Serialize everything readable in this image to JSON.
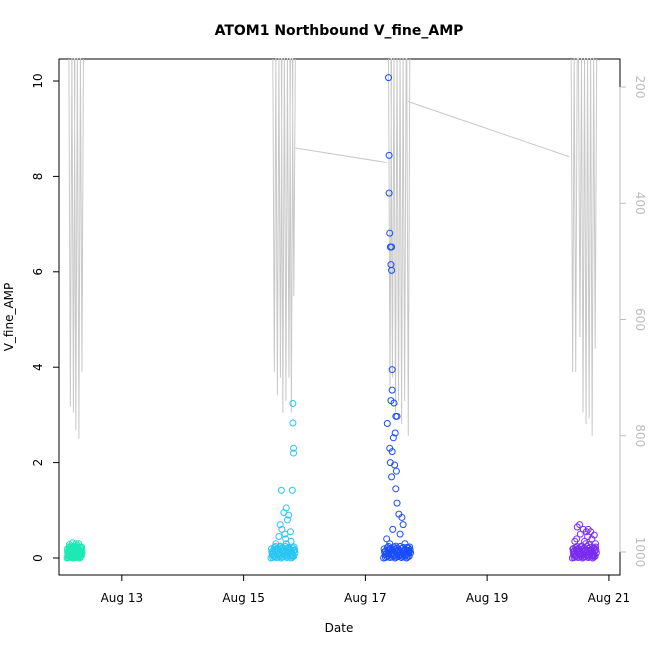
{
  "chart_data": {
    "type": "scatter",
    "title": "ATOM1 Northbound V_fine_AMP",
    "xlabel": "Date",
    "ylabel": "V_fine_AMP",
    "x_ticks": [
      "Aug 13",
      "Aug 15",
      "Aug 17",
      "Aug 19",
      "Aug 21"
    ],
    "x_tick_days": [
      13,
      15,
      17,
      19,
      21
    ],
    "xlim": [
      12.05,
      21.1
    ],
    "ylim": [
      0,
      10.3
    ],
    "y_ticks": [
      0,
      2,
      4,
      6,
      8,
      10
    ],
    "y2_ticks": [
      200,
      400,
      600,
      800,
      1000
    ],
    "y2lim": [
      1010,
      125
    ],
    "grid": false,
    "legend": "none",
    "series": [
      {
        "color": "#1de9b6",
        "cluster": {
          "day_range": [
            12.1,
            12.35
          ],
          "points": [
            [
              12.12,
              0.05
            ],
            [
              12.15,
              0.1
            ],
            [
              12.18,
              0.15
            ],
            [
              12.2,
              0.2
            ],
            [
              12.22,
              0.25
            ],
            [
              12.25,
              0.3
            ],
            [
              12.28,
              0.05
            ],
            [
              12.3,
              0.12
            ],
            [
              12.32,
              0.22
            ],
            [
              12.14,
              0.28
            ],
            [
              12.17,
              0.03
            ],
            [
              12.21,
              0.08
            ],
            [
              12.24,
              0.18
            ],
            [
              12.27,
              0.26
            ],
            [
              12.33,
              0.1
            ],
            [
              12.19,
              0.32
            ],
            [
              12.26,
              0.02
            ],
            [
              12.13,
              0.2
            ],
            [
              12.29,
              0.3
            ],
            [
              12.31,
              0.06
            ]
          ]
        }
      },
      {
        "color": "#29c6f3",
        "cluster": {
          "day_range": [
            15.45,
            15.85
          ],
          "points": [
            [
              15.5,
              0.05
            ],
            [
              15.55,
              0.15
            ],
            [
              15.6,
              0.25
            ],
            [
              15.65,
              0.1
            ],
            [
              15.7,
              0.3
            ],
            [
              15.75,
              0.2
            ],
            [
              15.8,
              0.05
            ],
            [
              15.58,
              0.45
            ],
            [
              15.63,
              0.6
            ],
            [
              15.68,
              0.5
            ],
            [
              15.72,
              0.8
            ],
            [
              15.77,
              0.55
            ],
            [
              15.66,
              0.95
            ],
            [
              15.7,
              1.05
            ],
            [
              15.62,
              1.42
            ],
            [
              15.8,
              1.42
            ],
            [
              15.74,
              0.9
            ],
            [
              15.82,
              2.2
            ],
            [
              15.82,
              2.3
            ],
            [
              15.81,
              2.83
            ],
            [
              15.81,
              3.24
            ],
            [
              15.48,
              0.1
            ],
            [
              15.53,
              0.3
            ],
            [
              15.57,
              0.08
            ],
            [
              15.61,
              0.2
            ],
            [
              15.73,
              0.12
            ],
            [
              15.78,
              0.35
            ],
            [
              15.83,
              0.15
            ],
            [
              15.6,
              0.7
            ],
            [
              15.69,
              0.4
            ]
          ]
        }
      },
      {
        "color": "#1a4cff",
        "cluster": {
          "day_range": [
            17.3,
            17.75
          ],
          "points": [
            [
              17.38,
              10.07
            ],
            [
              17.39,
              8.44
            ],
            [
              17.39,
              7.65
            ],
            [
              17.4,
              6.81
            ],
            [
              17.41,
              6.52
            ],
            [
              17.43,
              6.52
            ],
            [
              17.42,
              6.15
            ],
            [
              17.43,
              6.03
            ],
            [
              17.44,
              3.95
            ],
            [
              17.44,
              3.52
            ],
            [
              17.42,
              3.3
            ],
            [
              17.47,
              3.25
            ],
            [
              17.5,
              2.97
            ],
            [
              17.52,
              2.97
            ],
            [
              17.36,
              2.82
            ],
            [
              17.49,
              2.62
            ],
            [
              17.46,
              2.52
            ],
            [
              17.4,
              2.3
            ],
            [
              17.44,
              2.23
            ],
            [
              17.41,
              2.0
            ],
            [
              17.48,
              1.95
            ],
            [
              17.51,
              1.82
            ],
            [
              17.43,
              1.7
            ],
            [
              17.5,
              1.45
            ],
            [
              17.52,
              1.15
            ],
            [
              17.55,
              0.92
            ],
            [
              17.6,
              0.85
            ],
            [
              17.62,
              0.7
            ],
            [
              17.45,
              0.6
            ],
            [
              17.57,
              0.5
            ],
            [
              17.35,
              0.4
            ],
            [
              17.4,
              0.3
            ],
            [
              17.5,
              0.25
            ],
            [
              17.6,
              0.2
            ],
            [
              17.7,
              0.15
            ],
            [
              17.65,
              0.3
            ],
            [
              17.38,
              0.1
            ],
            [
              17.55,
              0.05
            ],
            [
              17.68,
              0.22
            ],
            [
              17.72,
              0.12
            ]
          ]
        }
      },
      {
        "color": "#7a2cf0",
        "cluster": {
          "day_range": [
            20.4,
            20.8
          ],
          "points": [
            [
              20.45,
              0.05
            ],
            [
              20.5,
              0.15
            ],
            [
              20.55,
              0.25
            ],
            [
              20.6,
              0.35
            ],
            [
              20.65,
              0.45
            ],
            [
              20.7,
              0.55
            ],
            [
              20.75,
              0.2
            ],
            [
              20.48,
              0.65
            ],
            [
              20.52,
              0.7
            ],
            [
              20.58,
              0.6
            ],
            [
              20.62,
              0.3
            ],
            [
              20.68,
              0.1
            ],
            [
              20.72,
              0.4
            ],
            [
              20.78,
              0.3
            ],
            [
              20.42,
              0.2
            ],
            [
              20.47,
              0.4
            ],
            [
              20.53,
              0.5
            ],
            [
              20.57,
              0.08
            ],
            [
              20.63,
              0.55
            ],
            [
              20.67,
              0.28
            ],
            [
              20.71,
              0.18
            ],
            [
              20.76,
              0.48
            ],
            [
              20.44,
              0.35
            ],
            [
              20.66,
              0.6
            ],
            [
              20.74,
              0.05
            ]
          ]
        }
      }
    ],
    "depth_line": {
      "color": "#c8c8c8",
      "axis": "right",
      "segments": [
        {
          "day_range": [
            12.1,
            12.35
          ],
          "spikes": [
            [
              12.13,
              125,
              750
            ],
            [
              12.18,
              125,
              760
            ],
            [
              12.22,
              125,
              790
            ],
            [
              12.27,
              125,
              805
            ],
            [
              12.32,
              125,
              690
            ]
          ]
        },
        {
          "day_range": [
            15.45,
            15.85
          ],
          "spikes": [
            [
              15.48,
              125,
              690
            ],
            [
              15.53,
              125,
              730
            ],
            [
              15.58,
              125,
              700
            ],
            [
              15.62,
              125,
              760
            ],
            [
              15.67,
              125,
              740
            ],
            [
              15.72,
              125,
              700
            ],
            [
              15.76,
              125,
              760
            ],
            [
              15.8,
              125,
              560
            ]
          ]
        },
        {
          "trend": [
            [
              15.85,
              305
            ],
            [
              17.35,
              330
            ]
          ]
        },
        {
          "day_range": [
            17.35,
            17.7
          ],
          "spikes": [
            [
              17.38,
              125,
              720
            ],
            [
              17.42,
              125,
              700
            ],
            [
              17.47,
              125,
              760
            ],
            [
              17.52,
              125,
              740
            ],
            [
              17.57,
              125,
              780
            ],
            [
              17.62,
              125,
              740
            ],
            [
              17.68,
              125,
              800
            ]
          ]
        },
        {
          "trend": [
            [
              17.7,
              225
            ],
            [
              20.35,
              320
            ]
          ]
        },
        {
          "day_range": [
            20.35,
            20.8
          ],
          "spikes": [
            [
              20.38,
              125,
              690
            ],
            [
              20.43,
              125,
              690
            ],
            [
              20.5,
              125,
              630
            ],
            [
              20.55,
              125,
              760
            ],
            [
              20.6,
              125,
              780
            ],
            [
              20.65,
              125,
              770
            ],
            [
              20.7,
              125,
              800
            ],
            [
              20.75,
              125,
              650
            ]
          ]
        }
      ]
    }
  }
}
